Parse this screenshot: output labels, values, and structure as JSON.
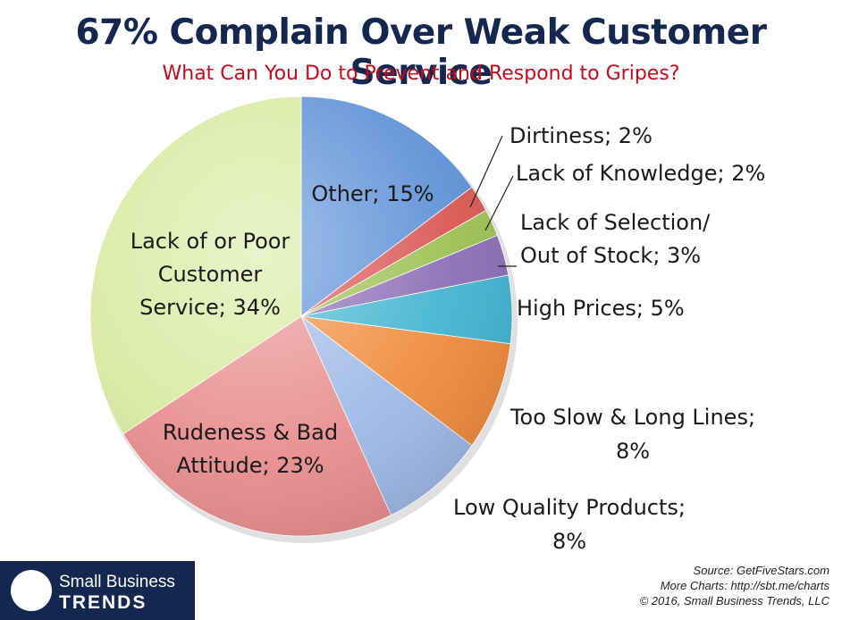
{
  "title": "67% Complain Over Weak Customer Service",
  "subtitle": "What Can You Do to Prevent and Respond to Gripes?",
  "chart_data": {
    "type": "pie",
    "slices": [
      {
        "label": "Other; 15%",
        "name": "Other",
        "value": 15,
        "color": "#5b8fd6"
      },
      {
        "label": "Dirtiness; 2%",
        "name": "Dirtiness",
        "value": 2,
        "color": "#d9534f"
      },
      {
        "label": "Lack of Knowledge; 2%",
        "name": "Lack of Knowledge",
        "value": 2,
        "color": "#9bbf4f"
      },
      {
        "label": "Lack of Selection/ Out of Stock; 3%",
        "name": "Lack of Selection/ Out of Stock",
        "value": 3,
        "color": "#8a6bb5"
      },
      {
        "label": "High Prices; 5%",
        "name": "High Prices",
        "value": 5,
        "color": "#3fb3cf"
      },
      {
        "label": "Too Slow & Long Lines; 8%",
        "name": "Too Slow & Long Lines",
        "value": 8,
        "color": "#f08a3a"
      },
      {
        "label": "Low Quality Products; 8%",
        "name": "Low Quality Products",
        "value": 8,
        "color": "#9db8e6"
      },
      {
        "label": "Rudeness & Bad Attitude; 23%",
        "name": "Rudeness & Bad Attitude",
        "value": 23,
        "color": "#e88c8c"
      },
      {
        "label": "Lack of or Poor Customer Service; 34%",
        "name": "Lack of or Poor Customer Service",
        "value": 34,
        "color": "#d6ea9e"
      }
    ]
  },
  "footer": {
    "logo_line1": "Small Business",
    "logo_line2": "TRENDS",
    "source": "Source: GetFiveStars.com",
    "more": "More Charts: http://sbt.me/charts",
    "copyright": "© 2016, Small Business Trends, LLC"
  }
}
